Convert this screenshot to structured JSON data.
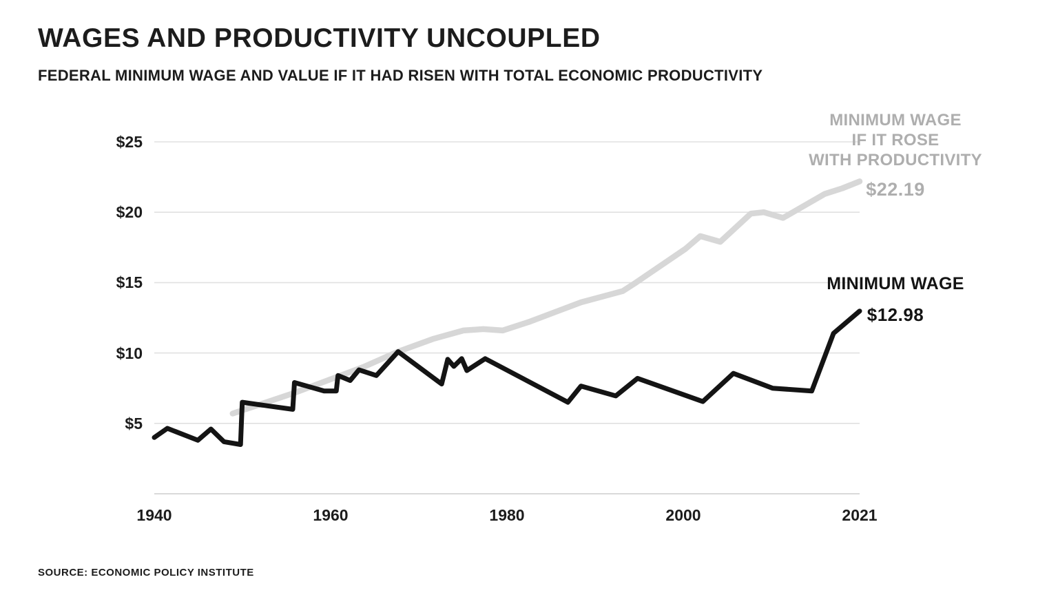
{
  "header": {
    "title": "WAGES AND PRODUCTIVITY UNCOUPLED",
    "subtitle": "FEDERAL MINIMUM WAGE AND VALUE IF IT HAD RISEN WITH TOTAL ECONOMIC PRODUCTIVITY"
  },
  "footer": {
    "source": "SOURCE: ECONOMIC POLICY INSTITUTE"
  },
  "annotations": {
    "productivity_label_lines": [
      "MINIMUM WAGE",
      "IF IT ROSE",
      "WITH PRODUCTIVITY"
    ],
    "productivity_value": "$22.19",
    "wage_label": "MINIMUM WAGE",
    "wage_value": "$12.98"
  },
  "colors": {
    "wage_line": "#141414",
    "productivity_line": "#d7d7d7",
    "annotation_gray": "#aeaeae",
    "gridline": "#e0e0e0",
    "axis_line": "#d9d9d9",
    "text": "#1c1c1c"
  },
  "chart_data": {
    "type": "line",
    "title": "WAGES AND PRODUCTIVITY UNCOUPLED",
    "subtitle": "FEDERAL MINIMUM WAGE AND VALUE IF IT HAD RISEN WITH TOTAL ECONOMIC PRODUCTIVITY",
    "xlabel": "",
    "ylabel": "",
    "xlim": [
      1940,
      2021
    ],
    "ylim": [
      0,
      25
    ],
    "grid": true,
    "legend_position": "inline-right",
    "y_ticks": [
      {
        "value": 5,
        "label": "$5"
      },
      {
        "value": 10,
        "label": "$10"
      },
      {
        "value": 15,
        "label": "$15"
      },
      {
        "value": 20,
        "label": "$20"
      },
      {
        "value": 25,
        "label": "$25"
      }
    ],
    "x_ticks": [
      {
        "value": 1940,
        "label": "1940"
      },
      {
        "value": 1960,
        "label": "1960"
      },
      {
        "value": 1980,
        "label": "1980"
      },
      {
        "value": 2000,
        "label": "2000"
      },
      {
        "value": 2021,
        "label": "2021"
      }
    ],
    "series": [
      {
        "key": "productivity",
        "name": "Minimum wage if it rose with productivity",
        "color_key": "productivity_line",
        "end_value": 22.19,
        "points": [
          [
            1949,
            5.7
          ],
          [
            1956,
            7.15
          ],
          [
            1964,
            9.0
          ],
          [
            1968,
            10.1
          ],
          [
            1972,
            11.0
          ],
          [
            1975.5,
            11.6
          ],
          [
            1977.8,
            11.7
          ],
          [
            1980,
            11.6
          ],
          [
            1983,
            12.2
          ],
          [
            1986,
            12.9
          ],
          [
            1989,
            13.6
          ],
          [
            1993.8,
            14.4
          ],
          [
            1995.3,
            15.0
          ],
          [
            2001,
            17.4
          ],
          [
            2002.7,
            18.3
          ],
          [
            2005,
            17.9
          ],
          [
            2008.5,
            19.9
          ],
          [
            2010,
            20.0
          ],
          [
            2012.2,
            19.6
          ],
          [
            2017,
            21.3
          ],
          [
            2019,
            21.7
          ],
          [
            2021,
            22.19
          ]
        ]
      },
      {
        "key": "wage",
        "name": "Minimum wage",
        "color_key": "wage_line",
        "end_value": 12.98,
        "points": [
          [
            1940,
            4.0
          ],
          [
            1941.5,
            4.65
          ],
          [
            1945,
            3.8
          ],
          [
            1946.5,
            4.6
          ],
          [
            1948,
            3.7
          ],
          [
            1949.9,
            3.5
          ],
          [
            1950.1,
            6.5
          ],
          [
            1953,
            6.25
          ],
          [
            1955.9,
            6.0
          ],
          [
            1956.1,
            7.9
          ],
          [
            1959.5,
            7.3
          ],
          [
            1960.9,
            7.3
          ],
          [
            1961.1,
            8.4
          ],
          [
            1962.5,
            8.05
          ],
          [
            1963.5,
            8.8
          ],
          [
            1965.5,
            8.4
          ],
          [
            1968,
            10.1
          ],
          [
            1973,
            7.8
          ],
          [
            1973.7,
            9.55
          ],
          [
            1974.4,
            9.05
          ],
          [
            1975.3,
            9.6
          ],
          [
            1975.9,
            8.75
          ],
          [
            1978,
            9.6
          ],
          [
            1987.5,
            6.5
          ],
          [
            1989,
            7.65
          ],
          [
            1993,
            6.95
          ],
          [
            1995.5,
            8.2
          ],
          [
            2003,
            6.55
          ],
          [
            2006.5,
            8.55
          ],
          [
            2011,
            7.5
          ],
          [
            2015.5,
            7.3
          ],
          [
            2018,
            11.4
          ],
          [
            2021,
            12.98
          ]
        ]
      }
    ]
  }
}
